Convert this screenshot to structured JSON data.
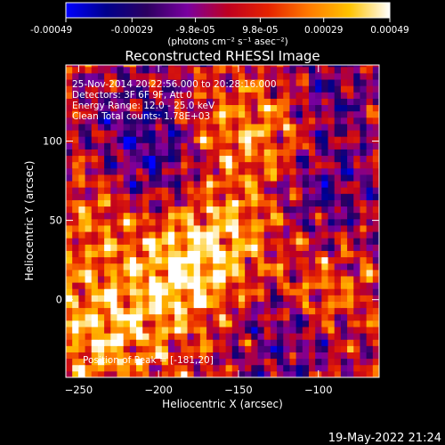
{
  "colors": {
    "background": "#000000",
    "text": "#ffffff",
    "colormap": [
      "#0000ff",
      "#00008c",
      "#2c0060",
      "#7a00a0",
      "#bf0020",
      "#e62300",
      "#ff7a00",
      "#ffc300",
      "#ffffff"
    ]
  },
  "colorbar": {
    "ticks": [
      "-0.00049",
      "-0.00029",
      "-9.8e-05",
      "9.8e-05",
      "0.00029",
      "0.00049"
    ],
    "unit_label": "(photons cm⁻² s⁻¹ asec⁻²)",
    "range": [
      -0.00049,
      0.00049
    ]
  },
  "footer": {
    "timestamp": "19-May-2022 21:24"
  },
  "chart_data": {
    "type": "heatmap",
    "title": "Reconstructed RHESSI Image",
    "xlabel": "Heliocentric X (arcsec)",
    "ylabel": "Heliocentric Y (arcsec)",
    "xlim": [
      -258,
      -62
    ],
    "ylim": [
      -49,
      148
    ],
    "xticks": [
      -250,
      -200,
      -150,
      -100
    ],
    "yticks": [
      0,
      50,
      100
    ],
    "annotations": [
      "25-Nov-2014 20:22:56.000 to 20:28:16.000",
      "Detectors: 3F 6F 9F, Att 0",
      "Energy Range: 12.0 - 25.0 keV",
      "Clean     Total counts: 1.78E+03"
    ],
    "peak_label": "Position of Peak = [-181,20]",
    "peak_position": [
      -181,
      20
    ],
    "pixel_size_arcsec": 4,
    "texture_seed": 7
  }
}
